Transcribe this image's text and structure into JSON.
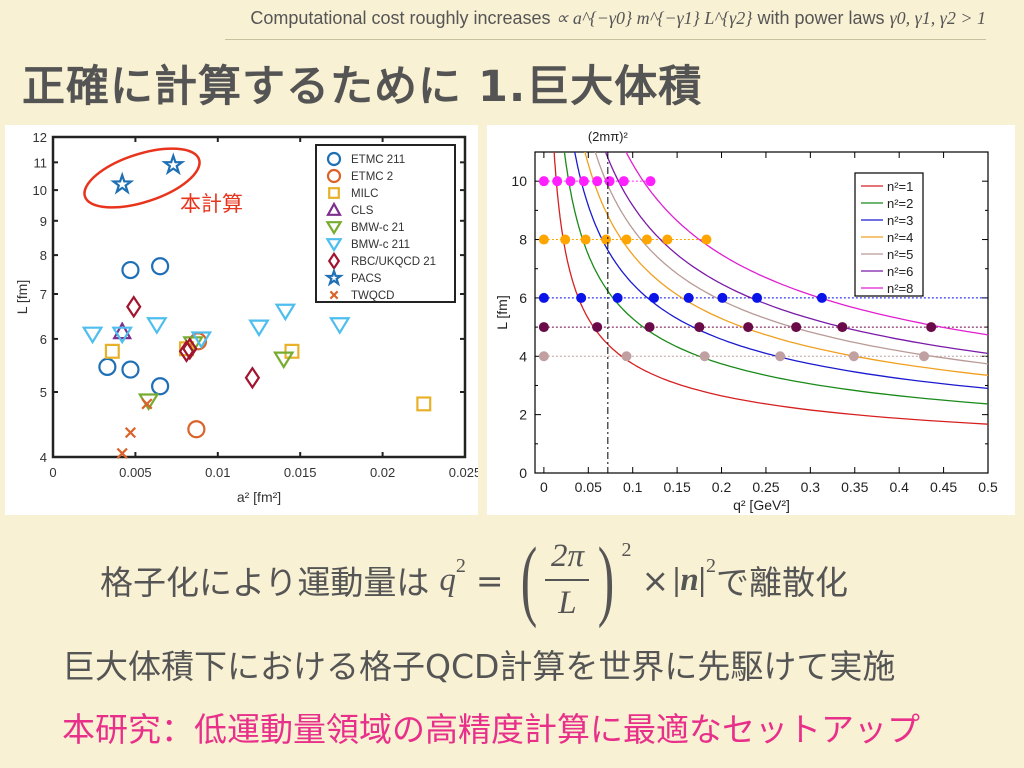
{
  "header": {
    "text_prefix": "Computational cost roughly increases",
    "proportional_expr": "∝ a^{−γ0} m^{−γ1} L^{γ2}",
    "text_mid": "with power laws",
    "condition_expr": "γ0, γ1, γ2 > 1"
  },
  "title": "正確に計算するために 1.巨大体積",
  "formula": {
    "prefix": "格子化により運動量は",
    "lhs": "q",
    "lhs_sup": "2",
    "equals": "=",
    "numerator": "2π",
    "denominator": "L",
    "outer_sup": "2",
    "times": "×",
    "vec": "|n|",
    "vec_sup": "2",
    "suffix": "で離散化"
  },
  "line2": "巨大体積下における格子QCD計算を世界に先駆けて実施",
  "line3": "本研究：低運動量領域の高精度計算に最適なセットアップ",
  "colors": {
    "background": "#f9f1d4",
    "accent": "#e8308a",
    "annotation": "#e8341c"
  },
  "chart_data": [
    {
      "type": "scatter",
      "xlabel": "a² [fm²]",
      "ylabel": "L [fm]",
      "xlim": [
        0,
        0.025
      ],
      "ylim": [
        4,
        12
      ],
      "yscale": "log",
      "xticks": [
        "0",
        "0.005",
        "0.01",
        "0.015",
        "0.02",
        "0.025"
      ],
      "xtick_values": [
        0,
        0.005,
        0.01,
        0.015,
        0.02,
        0.025
      ],
      "yticks": [
        "4",
        "5",
        "6",
        "7",
        "8",
        "9",
        "10",
        "11",
        "12"
      ],
      "ytick_values": [
        4,
        5,
        6,
        7,
        8,
        9,
        10,
        11,
        12
      ],
      "legend_position": "top-right",
      "annotation": "本計算",
      "series": [
        {
          "name": "ETMC 211",
          "marker": "circle",
          "color": "#1f6fb4",
          "points": [
            [
              0.0047,
              7.6
            ],
            [
              0.0065,
              7.7
            ],
            [
              0.0033,
              5.45
            ],
            [
              0.0047,
              5.4
            ],
            [
              0.0065,
              5.1
            ]
          ]
        },
        {
          "name": "ETMC 2",
          "marker": "circle",
          "color": "#d9632a",
          "points": [
            [
              0.0087,
              4.4
            ],
            [
              0.0088,
              5.95
            ]
          ]
        },
        {
          "name": "MILC",
          "marker": "square",
          "color": "#e9b12a",
          "points": [
            [
              0.0036,
              5.75
            ],
            [
              0.0145,
              5.75
            ],
            [
              0.0225,
              4.8
            ],
            [
              0.0081,
              5.8
            ]
          ]
        },
        {
          "name": "CLS",
          "marker": "triangle-up",
          "color": "#7e2f8e",
          "points": [
            [
              0.0042,
              6.15
            ]
          ]
        },
        {
          "name": "BMW-c 21",
          "marker": "triangle-down",
          "color": "#77ac30",
          "points": [
            [
              0.0058,
              4.85
            ],
            [
              0.0085,
              5.9
            ],
            [
              0.014,
              5.6
            ]
          ]
        },
        {
          "name": "BMW-c 211",
          "marker": "triangle-down",
          "color": "#4dbeee",
          "points": [
            [
              0.0024,
              6.1
            ],
            [
              0.0042,
              6.1
            ],
            [
              0.0063,
              6.3
            ],
            [
              0.009,
              6.0
            ],
            [
              0.0125,
              6.25
            ],
            [
              0.0141,
              6.6
            ],
            [
              0.0174,
              6.3
            ]
          ]
        },
        {
          "name": "RBC/UKQCD 21",
          "marker": "diamond",
          "color": "#a2142f",
          "points": [
            [
              0.0049,
              6.7
            ],
            [
              0.0081,
              5.75
            ],
            [
              0.0121,
              5.25
            ],
            [
              0.0083,
              5.8
            ]
          ]
        },
        {
          "name": "PACS",
          "marker": "star",
          "color": "#1f6fb4",
          "points": [
            [
              0.0042,
              10.2
            ],
            [
              0.0073,
              10.9
            ]
          ]
        },
        {
          "name": "TWQCD",
          "marker": "x",
          "color": "#d9632a",
          "points": [
            [
              0.0042,
              4.05
            ],
            [
              0.0047,
              4.35
            ],
            [
              0.0057,
              4.8
            ]
          ]
        }
      ]
    },
    {
      "type": "line",
      "xlabel": "q² [GeV²]",
      "ylabel": "L [fm]",
      "xlim": [
        -0.01,
        0.5
      ],
      "ylim": [
        0,
        11
      ],
      "xticks": [
        "0",
        "0.05",
        "0.1",
        "0.15",
        "0.2",
        "0.25",
        "0.3",
        "0.35",
        "0.4",
        "0.45",
        "0.5"
      ],
      "xtick_values": [
        0,
        0.05,
        0.1,
        0.15,
        0.2,
        0.25,
        0.3,
        0.35,
        0.4,
        0.45,
        0.5
      ],
      "yticks": [
        "0",
        "2",
        "4",
        "6",
        "8",
        "10"
      ],
      "ytick_values": [
        0,
        2,
        4,
        6,
        8,
        10
      ],
      "legend_position": "top-right",
      "vline": {
        "x": 0.072,
        "label": "(2mπ)²"
      },
      "curve_coefficient": 1.4,
      "series": [
        {
          "name": "n²=1",
          "n2": 1,
          "color": "#d62020"
        },
        {
          "name": "n²=2",
          "n2": 2,
          "color": "#1a8a1a"
        },
        {
          "name": "n²=3",
          "n2": 3,
          "color": "#1a1ad0"
        },
        {
          "name": "n²=4",
          "n2": 4,
          "color": "#f0a020"
        },
        {
          "name": "n²=5",
          "n2": 5,
          "color": "#b89a96"
        },
        {
          "name": "n²=6",
          "n2": 6,
          "color": "#7a1aa8"
        },
        {
          "name": "n²=8",
          "n2": 8,
          "color": "#e020d0"
        }
      ],
      "point_rows": [
        {
          "L": 10,
          "color": "#ff20ff",
          "q2": [
            0,
            0.015,
            0.03,
            0.045,
            0.06,
            0.074,
            0.09,
            0.12
          ]
        },
        {
          "L": 8,
          "color": "#ffa500",
          "q2": [
            0,
            0.024,
            0.047,
            0.07,
            0.093,
            0.116,
            0.139,
            0.183
          ]
        },
        {
          "L": 6,
          "color": "#0a14e8",
          "q2": [
            0,
            0.042,
            0.083,
            0.124,
            0.163,
            0.201,
            0.24,
            0.313
          ]
        },
        {
          "L": 5,
          "color": "#6a0a48",
          "q2": [
            0,
            0.06,
            0.119,
            0.175,
            0.23,
            0.284,
            0.336,
            0.436
          ]
        },
        {
          "L": 4,
          "color": "#c0a0a0",
          "q2": [
            0,
            0.093,
            0.181,
            0.266,
            0.349,
            0.428
          ]
        }
      ]
    }
  ]
}
